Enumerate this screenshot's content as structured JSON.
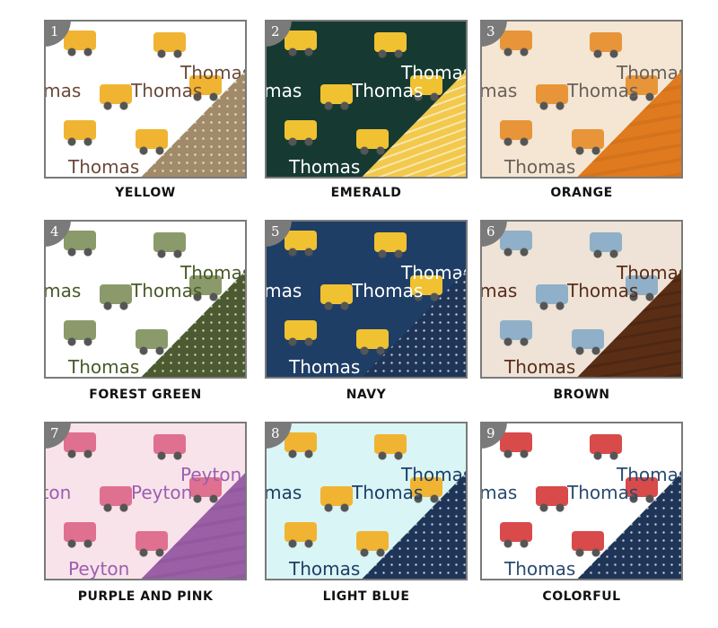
{
  "tiles": [
    {
      "number": "1",
      "name": "Thomas",
      "label": "YELLOW",
      "bg": "#ffffff",
      "text_color": "#6b4a3a",
      "accent": "#a08a68",
      "vehicle": "#f0b432"
    },
    {
      "number": "2",
      "name": "Thomas",
      "label": "EMERALD",
      "bg": "#163a32",
      "text_color": "#ffffff",
      "accent": "#f2c94c",
      "vehicle": "#f0c232"
    },
    {
      "number": "3",
      "name": "Thomas",
      "label": "ORANGE",
      "bg": "#f4e6d3",
      "text_color": "#6a605a",
      "accent": "#e07a1e",
      "vehicle": "#e8953a"
    },
    {
      "number": "4",
      "name": "Thomas",
      "label": "FOREST GREEN",
      "bg": "#ffffff",
      "text_color": "#4a5a2a",
      "accent": "#4b5a30",
      "vehicle": "#8b9a6a"
    },
    {
      "number": "5",
      "name": "Thomas",
      "label": "NAVY",
      "bg": "#1f3e66",
      "text_color": "#ffffff",
      "accent": "#1e3558",
      "vehicle": "#f0c232"
    },
    {
      "number": "6",
      "name": "Thomas",
      "label": "BROWN",
      "bg": "#eee3d6",
      "text_color": "#5a2e1a",
      "accent": "#5a2e15",
      "vehicle": "#8fb0c8"
    },
    {
      "number": "7",
      "name": "Peyton",
      "label": "PURPLE AND PINK",
      "bg": "#f9e3ea",
      "text_color": "#9b5fb0",
      "accent": "#9b5fa8",
      "vehicle": "#e07090"
    },
    {
      "number": "8",
      "name": "Thomas",
      "label": "LIGHT BLUE",
      "bg": "#d9f5f5",
      "text_color": "#1f3e66",
      "accent": "#1e3558",
      "vehicle": "#f0b432"
    },
    {
      "number": "9",
      "name": "Thomas",
      "label": "COLORFUL",
      "bg": "#ffffff",
      "text_color": "#2a4a70",
      "accent": "#1e3558",
      "vehicle": "#d94a4a"
    }
  ]
}
